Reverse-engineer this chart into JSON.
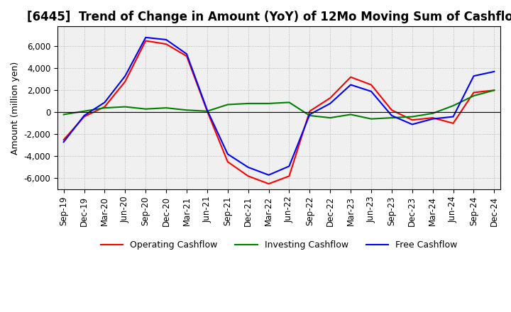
{
  "title": "[6445]  Trend of Change in Amount (YoY) of 12Mo Moving Sum of Cashflows",
  "ylabel": "Amount (million yen)",
  "ylim": [
    -7000,
    7800
  ],
  "yticks": [
    -6000,
    -4000,
    -2000,
    0,
    2000,
    4000,
    6000
  ],
  "x_labels": [
    "Sep-19",
    "Dec-19",
    "Mar-20",
    "Jun-20",
    "Sep-20",
    "Dec-20",
    "Mar-21",
    "Jun-21",
    "Sep-21",
    "Dec-21",
    "Mar-22",
    "Jun-22",
    "Sep-22",
    "Dec-22",
    "Mar-23",
    "Jun-23",
    "Sep-23",
    "Dec-23",
    "Mar-24",
    "Jun-24",
    "Sep-24",
    "Dec-24"
  ],
  "operating": [
    -2500,
    -400,
    500,
    2800,
    6500,
    6200,
    5100,
    100,
    -4500,
    -5800,
    -6500,
    -5800,
    100,
    1300,
    3200,
    2500,
    200,
    -700,
    -500,
    -1000,
    1800,
    2000
  ],
  "investing": [
    -200,
    100,
    400,
    500,
    300,
    400,
    200,
    100,
    700,
    800,
    800,
    900,
    -300,
    -500,
    -200,
    -600,
    -500,
    -400,
    -100,
    600,
    1500,
    2000
  ],
  "free": [
    -2700,
    -300,
    900,
    3300,
    6800,
    6600,
    5300,
    200,
    -3800,
    -5000,
    -5700,
    -4900,
    -200,
    800,
    2500,
    1900,
    -300,
    -1100,
    -600,
    -400,
    3300,
    3700
  ],
  "operating_color": "#ff0000",
  "investing_color": "#008000",
  "free_color": "#0000ff",
  "grid_color": "#aaaaaa",
  "bg_color": "#f0f0f0",
  "title_fontsize": 12,
  "axis_fontsize": 9,
  "tick_fontsize": 8.5
}
